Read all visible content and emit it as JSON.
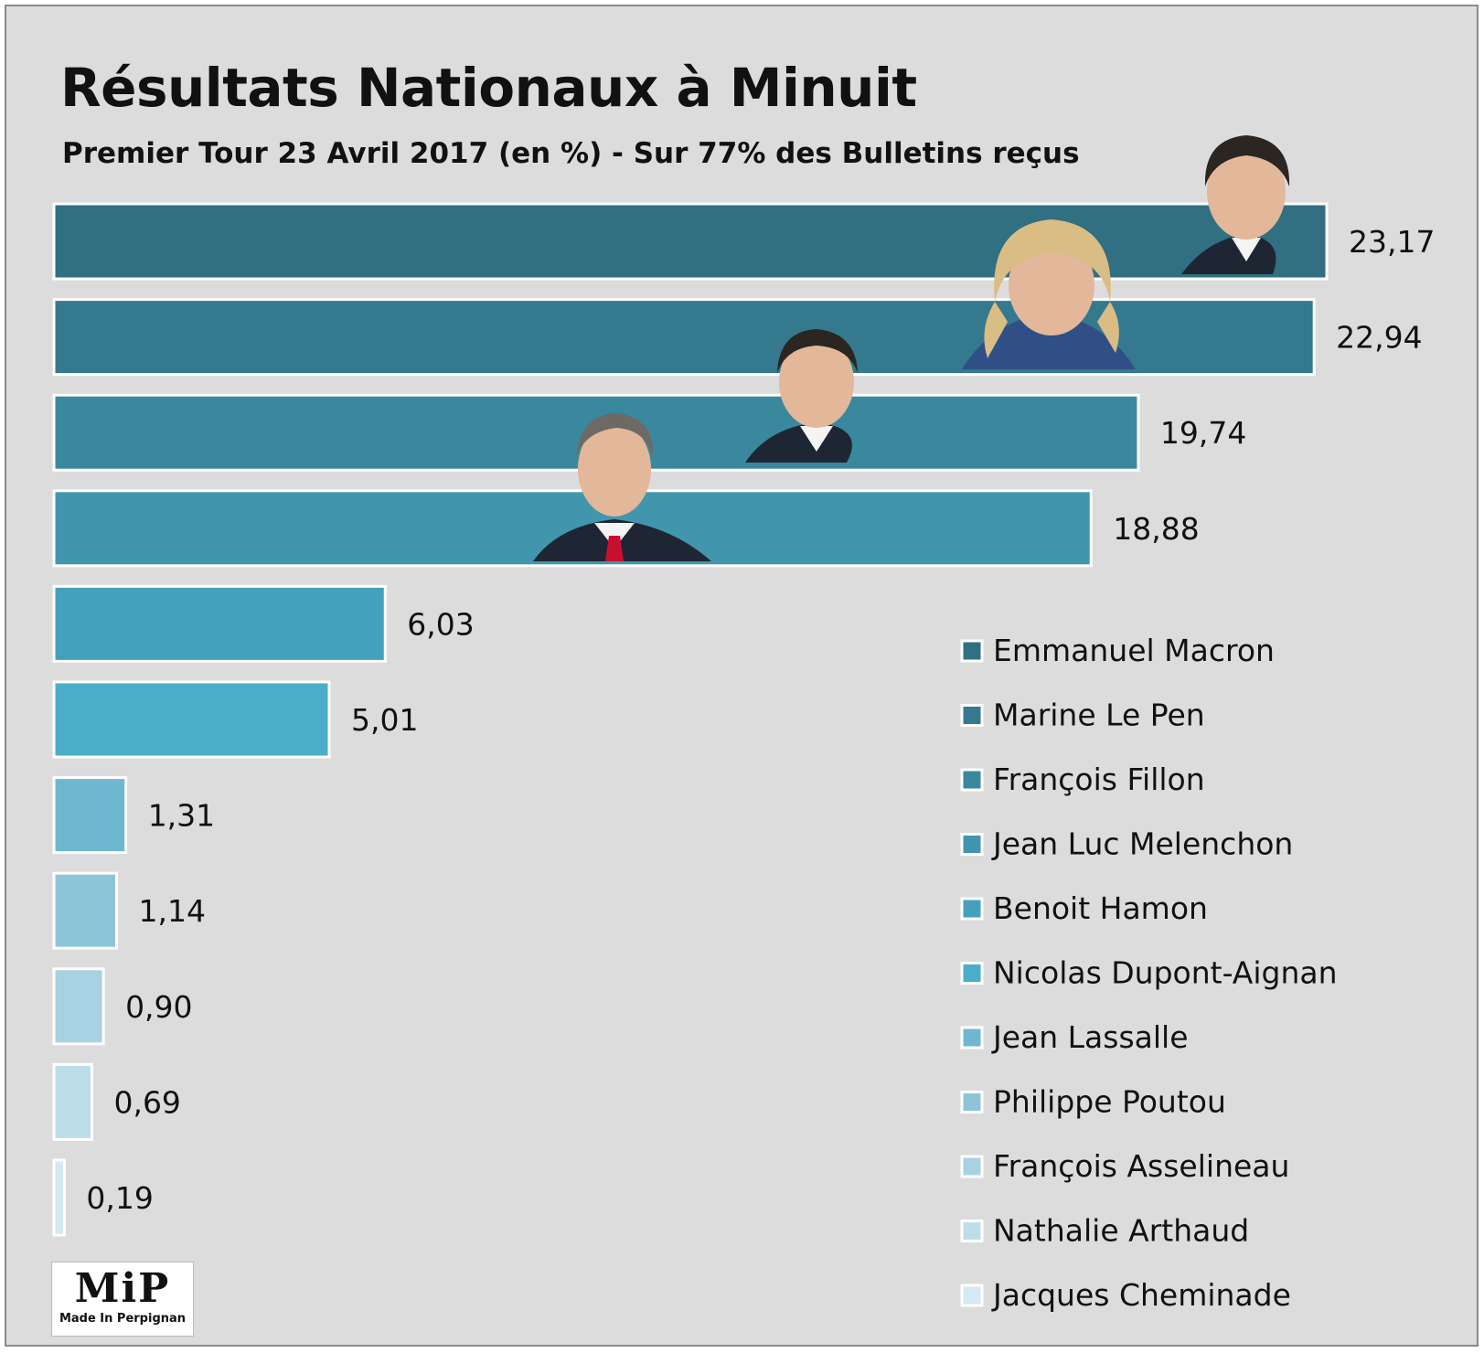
{
  "title": "Résultats Nationaux à Minuit",
  "subtitle": "Premier Tour 23 Avril 2017 (en %) - Sur 77% des Bulletins reçus",
  "logo": {
    "mark": "MiP",
    "text": "Made In Perpignan"
  },
  "chart_data": {
    "type": "bar",
    "orientation": "horizontal",
    "title": "Résultats Nationaux à Minuit",
    "subtitle": "Premier Tour 23 Avril 2017 (en %) - Sur 77% des Bulletins reçus",
    "xlabel": "",
    "ylabel": "",
    "xlim": [
      0,
      23.17
    ],
    "grid": false,
    "legend_position": "right",
    "categories": [
      "Emmanuel Macron",
      "Marine Le Pen",
      "François Fillon",
      "Jean Luc Melenchon",
      "Benoit Hamon",
      "Nicolas Dupont-Aignan",
      "Jean Lassalle",
      "Philippe Poutou",
      "François Asselineau",
      "Nathalie Arthaud",
      "Jacques Cheminade"
    ],
    "values": [
      23.17,
      22.94,
      19.74,
      18.88,
      6.03,
      5.01,
      1.31,
      1.14,
      0.9,
      0.69,
      0.19
    ],
    "value_labels": [
      "23,17",
      "22,94",
      "19,74",
      "18,88",
      "6,03",
      "5,01",
      "1,31",
      "1,14",
      "0,90",
      "0,69",
      "0,19"
    ],
    "colors": [
      "#316f82",
      "#35798e",
      "#3a889d",
      "#4196ad",
      "#44a1bb",
      "#4aaec8",
      "#6fb7cf",
      "#8ec4d8",
      "#a8d1e1",
      "#bddde9",
      "#d4e9f1"
    ]
  }
}
